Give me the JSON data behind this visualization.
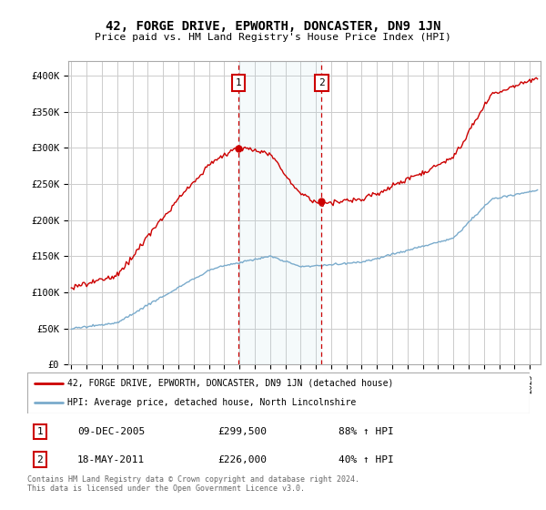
{
  "title": "42, FORGE DRIVE, EPWORTH, DONCASTER, DN9 1JN",
  "subtitle": "Price paid vs. HM Land Registry's House Price Index (HPI)",
  "ylim": [
    0,
    420000
  ],
  "yticks": [
    0,
    50000,
    100000,
    150000,
    200000,
    250000,
    300000,
    350000,
    400000
  ],
  "ytick_labels": [
    "£0",
    "£50K",
    "£100K",
    "£150K",
    "£200K",
    "£250K",
    "£300K",
    "£350K",
    "£400K"
  ],
  "sale1_date_num": 2005.94,
  "sale1_price": 299500,
  "sale1_label": "1",
  "sale2_date_num": 2011.38,
  "sale2_price": 226000,
  "sale2_label": "2",
  "line1_color": "#cc0000",
  "line2_color": "#7aabcc",
  "grid_color": "#cccccc",
  "legend_line1": "42, FORGE DRIVE, EPWORTH, DONCASTER, DN9 1JN (detached house)",
  "legend_line2": "HPI: Average price, detached house, North Lincolnshire",
  "footer": "Contains HM Land Registry data © Crown copyright and database right 2024.\nThis data is licensed under the Open Government Licence v3.0.",
  "table_rows": [
    [
      "1",
      "09-DEC-2005",
      "£299,500",
      "88% ↑ HPI"
    ],
    [
      "2",
      "18-MAY-2011",
      "£226,000",
      "40% ↑ HPI"
    ]
  ]
}
